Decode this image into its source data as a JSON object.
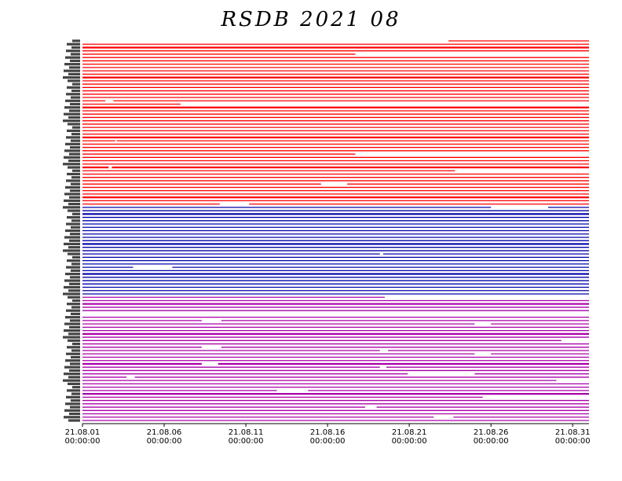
{
  "chart_data": {
    "type": "timeline",
    "title": "RSDB  2021  08",
    "x_ticks": [
      {
        "date": "21.08.01",
        "time": "00:00:00"
      },
      {
        "date": "21.08.06",
        "time": "00:00:00"
      },
      {
        "date": "21.08.11",
        "time": "00:00:00"
      },
      {
        "date": "21.08.16",
        "time": "00:00:00"
      },
      {
        "date": "21.08.21",
        "time": "00:00:00"
      },
      {
        "date": "21.08.26",
        "time": "00:00:00"
      },
      {
        "date": "21.08.31",
        "time": "00:00:00"
      }
    ],
    "x_range_days": [
      0,
      31
    ],
    "groups": [
      {
        "color": "#ff0000",
        "station_count": 50
      },
      {
        "color": "#0000aa",
        "station_count": 27
      },
      {
        "color": "#aa00aa",
        "station_count": 38
      }
    ],
    "gaps": [
      {
        "row": 0,
        "from": 0,
        "to": 22.4
      },
      {
        "row": 4,
        "from": 16.7,
        "to": 31
      },
      {
        "row": 18,
        "from": 1.4,
        "to": 1.9
      },
      {
        "row": 19,
        "from": 6.0,
        "to": 31
      },
      {
        "row": 30,
        "from": 2.0,
        "to": 2.1
      },
      {
        "row": 34,
        "from": 16.7,
        "to": 31
      },
      {
        "row": 38,
        "from": 1.6,
        "to": 1.8
      },
      {
        "row": 39,
        "from": 22.8,
        "to": 31
      },
      {
        "row": 43,
        "from": 14.6,
        "to": 16.2
      },
      {
        "row": 49,
        "from": 8.4,
        "to": 10.2
      },
      {
        "row": 50,
        "from": 25.0,
        "to": 28.5
      },
      {
        "row": 64,
        "from": 18.2,
        "to": 18.4
      },
      {
        "row": 68,
        "from": 3.1,
        "to": 5.5
      },
      {
        "row": 77,
        "from": 18.5,
        "to": 31
      },
      {
        "row": 82,
        "from": 0,
        "to": 31
      },
      {
        "row": 84,
        "from": 7.3,
        "to": 8.5
      },
      {
        "row": 85,
        "from": 24.0,
        "to": 25.0
      },
      {
        "row": 90,
        "from": 29.3,
        "to": 31
      },
      {
        "row": 92,
        "from": 7.3,
        "to": 8.5
      },
      {
        "row": 93,
        "from": 18.2,
        "to": 18.7
      },
      {
        "row": 94,
        "from": 24.0,
        "to": 25.0
      },
      {
        "row": 97,
        "from": 7.3,
        "to": 8.3
      },
      {
        "row": 98,
        "from": 18.2,
        "to": 18.6
      },
      {
        "row": 100,
        "from": 19.9,
        "to": 24.0
      },
      {
        "row": 101,
        "from": 2.7,
        "to": 3.2
      },
      {
        "row": 102,
        "from": 29.0,
        "to": 31
      },
      {
        "row": 105,
        "from": 11.9,
        "to": 13.8
      },
      {
        "row": 107,
        "from": 24.5,
        "to": 31
      },
      {
        "row": 110,
        "from": 17.3,
        "to": 18.0
      },
      {
        "row": 113,
        "from": 21.5,
        "to": 22.7
      }
    ]
  }
}
